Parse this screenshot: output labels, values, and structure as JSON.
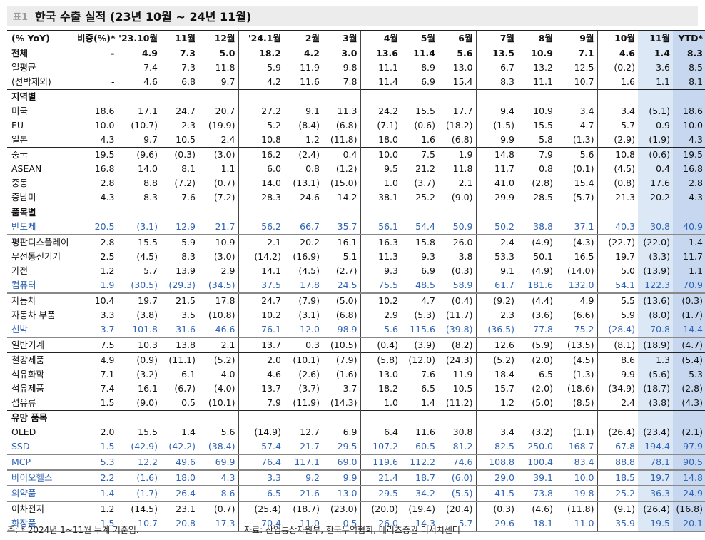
{
  "title_tag": "표1",
  "title": "한국 수출 실적 (23년 10월 ~ 24년 11월)",
  "header": [
    "(% YoY)",
    "비중(%)*",
    "'23.10월",
    "11월",
    "12월",
    "'24.1월",
    "2월",
    "3월",
    "4월",
    "5월",
    "6월",
    "7월",
    "8월",
    "9월",
    "10월",
    "11월",
    "YTD*"
  ],
  "groups": [
    {
      "rows": [
        {
          "label": "전체",
          "bold": true,
          "values": [
            "-",
            "4.9",
            "7.3",
            "5.0",
            "18.2",
            "4.2",
            "3.0",
            "13.6",
            "11.4",
            "5.6",
            "13.5",
            "10.9",
            "7.1",
            "4.6",
            "1.4",
            "8.3"
          ]
        },
        {
          "label": "일평균",
          "values": [
            "-",
            "7.4",
            "7.3",
            "11.8",
            "5.9",
            "11.9",
            "9.8",
            "11.1",
            "8.9",
            "13.0",
            "6.7",
            "13.2",
            "12.5",
            "(0.2)",
            "3.6",
            "8.5"
          ]
        },
        {
          "label": "(선박제외)",
          "values": [
            "-",
            "4.6",
            "6.8",
            "9.7",
            "4.2",
            "11.6",
            "7.8",
            "11.4",
            "6.9",
            "15.4",
            "8.3",
            "11.1",
            "10.7",
            "1.6",
            "1.1",
            "8.1"
          ]
        }
      ]
    },
    {
      "section": "지역별",
      "rows": [
        {
          "label": "미국",
          "values": [
            "18.6",
            "17.1",
            "24.7",
            "20.7",
            "27.2",
            "9.1",
            "11.3",
            "24.2",
            "15.5",
            "17.7",
            "9.4",
            "10.9",
            "3.4",
            "3.4",
            "(5.1)",
            "18.6"
          ]
        },
        {
          "label": "EU",
          "values": [
            "10.0",
            "(10.7)",
            "2.3",
            "(19.9)",
            "5.2",
            "(8.4)",
            "(6.8)",
            "(7.1)",
            "(0.6)",
            "(18.2)",
            "(1.5)",
            "15.5",
            "4.7",
            "5.7",
            "0.9",
            "10.0"
          ]
        },
        {
          "label": "일본",
          "values": [
            "4.3",
            "9.7",
            "10.5",
            "2.4",
            "10.8",
            "1.2",
            "(11.8)",
            "18.0",
            "1.6",
            "(6.8)",
            "9.9",
            "5.8",
            "(1.3)",
            "(2.9)",
            "(1.9)",
            "4.3"
          ]
        }
      ]
    },
    {
      "rows": [
        {
          "label": "중국",
          "values": [
            "19.5",
            "(9.6)",
            "(0.3)",
            "(3.0)",
            "16.2",
            "(2.4)",
            "0.4",
            "10.0",
            "7.5",
            "1.9",
            "14.8",
            "7.9",
            "5.6",
            "10.8",
            "(0.6)",
            "19.5"
          ]
        },
        {
          "label": "ASEAN",
          "values": [
            "16.8",
            "14.0",
            "8.1",
            "1.1",
            "6.0",
            "0.8",
            "(1.2)",
            "9.5",
            "21.2",
            "11.8",
            "11.7",
            "0.8",
            "(0.1)",
            "(4.5)",
            "0.4",
            "16.8"
          ]
        },
        {
          "label": "중동",
          "values": [
            "2.8",
            "8.8",
            "(7.2)",
            "(0.7)",
            "14.0",
            "(13.1)",
            "(15.0)",
            "1.0",
            "(3.7)",
            "2.1",
            "41.0",
            "(2.8)",
            "15.4",
            "(0.8)",
            "17.6",
            "2.8"
          ]
        },
        {
          "label": "중남미",
          "values": [
            "4.3",
            "8.3",
            "7.6",
            "(7.2)",
            "28.3",
            "24.6",
            "14.2",
            "38.1",
            "25.2",
            "(9.0)",
            "29.9",
            "28.5",
            "(5.7)",
            "21.3",
            "20.2",
            "4.3"
          ]
        }
      ]
    },
    {
      "section": "품목별",
      "rows": [
        {
          "label": "반도체",
          "blue": true,
          "values": [
            "20.5",
            "(3.1)",
            "12.9",
            "21.7",
            "56.2",
            "66.7",
            "35.7",
            "56.1",
            "54.4",
            "50.9",
            "50.2",
            "38.8",
            "37.1",
            "40.3",
            "30.8",
            "40.9"
          ]
        },
        {
          "label": "평판디스플레이",
          "values": [
            "2.8",
            "15.5",
            "5.9",
            "10.9",
            "2.1",
            "20.2",
            "16.1",
            "16.3",
            "15.8",
            "26.0",
            "2.4",
            "(4.9)",
            "(4.3)",
            "(22.7)",
            "(22.0)",
            "1.4"
          ]
        },
        {
          "label": "무선통신기기",
          "values": [
            "2.5",
            "(4.5)",
            "8.3",
            "(3.0)",
            "(14.2)",
            "(16.9)",
            "5.1",
            "11.3",
            "9.3",
            "3.8",
            "53.3",
            "50.1",
            "16.5",
            "19.7",
            "(3.3)",
            "11.7"
          ]
        },
        {
          "label": "가전",
          "values": [
            "1.2",
            "5.7",
            "13.9",
            "2.9",
            "14.1",
            "(4.5)",
            "(2.7)",
            "9.3",
            "6.9",
            "(0.3)",
            "9.1",
            "(4.9)",
            "(14.0)",
            "5.0",
            "(13.9)",
            "1.1"
          ]
        },
        {
          "label": "컴퓨터",
          "blue": true,
          "values": [
            "1.9",
            "(30.5)",
            "(29.3)",
            "(34.5)",
            "37.5",
            "17.8",
            "24.5",
            "75.5",
            "48.5",
            "58.9",
            "61.7",
            "181.6",
            "132.0",
            "54.1",
            "122.3",
            "70.9"
          ]
        }
      ]
    },
    {
      "rows": [
        {
          "label": "자동차",
          "values": [
            "10.4",
            "19.7",
            "21.5",
            "17.8",
            "24.7",
            "(7.9)",
            "(5.0)",
            "10.2",
            "4.7",
            "(0.4)",
            "(9.2)",
            "(4.4)",
            "4.9",
            "5.5",
            "(13.6)",
            "(0.3)"
          ]
        },
        {
          "label": "자동차 부품",
          "values": [
            "3.3",
            "(3.8)",
            "3.5",
            "(10.8)",
            "10.2",
            "(3.1)",
            "(6.8)",
            "2.9",
            "(5.3)",
            "(11.7)",
            "2.3",
            "(3.6)",
            "(6.6)",
            "5.9",
            "(8.0)",
            "(1.7)"
          ]
        },
        {
          "label": "선박",
          "blue": true,
          "values": [
            "3.7",
            "101.8",
            "31.6",
            "46.6",
            "76.1",
            "12.0",
            "98.9",
            "5.6",
            "115.6",
            "(39.8)",
            "(36.5)",
            "77.8",
            "75.2",
            "(28.4)",
            "70.8",
            "14.4"
          ]
        },
        {
          "label": "일반기계",
          "values": [
            "7.5",
            "10.3",
            "13.8",
            "2.1",
            "13.7",
            "0.3",
            "(10.5)",
            "(0.4)",
            "(3.9)",
            "(8.2)",
            "12.6",
            "(5.9)",
            "(13.5)",
            "(8.1)",
            "(18.9)",
            "(4.7)"
          ]
        }
      ]
    },
    {
      "rows": [
        {
          "label": "철강제품",
          "values": [
            "4.9",
            "(0.9)",
            "(11.1)",
            "(5.2)",
            "2.0",
            "(10.1)",
            "(7.9)",
            "(5.8)",
            "(12.0)",
            "(24.3)",
            "(5.2)",
            "(2.0)",
            "(4.5)",
            "8.6",
            "1.3",
            "(5.4)"
          ]
        },
        {
          "label": "석유화학",
          "values": [
            "7.1",
            "(3.2)",
            "6.1",
            "4.0",
            "4.6",
            "(2.6)",
            "(1.6)",
            "13.0",
            "7.6",
            "11.9",
            "18.4",
            "6.5",
            "(1.3)",
            "9.9",
            "(5.6)",
            "5.3"
          ]
        },
        {
          "label": "석유제품",
          "values": [
            "7.4",
            "16.1",
            "(6.7)",
            "(4.0)",
            "13.7",
            "(3.7)",
            "3.7",
            "18.2",
            "6.5",
            "10.5",
            "15.7",
            "(2.0)",
            "(18.6)",
            "(34.9)",
            "(18.7)",
            "(2.8)"
          ]
        },
        {
          "label": "섬유류",
          "values": [
            "1.5",
            "(9.0)",
            "0.5",
            "(10.1)",
            "7.9",
            "(11.9)",
            "(14.3)",
            "1.0",
            "1.4",
            "(11.2)",
            "1.2",
            "(5.0)",
            "(8.5)",
            "2.4",
            "(3.8)",
            "(4.3)"
          ]
        }
      ]
    },
    {
      "section": "유망 품목",
      "rows": [
        {
          "label": "OLED",
          "values": [
            "2.0",
            "15.5",
            "1.4",
            "5.6",
            "(14.9)",
            "12.7",
            "6.9",
            "6.4",
            "11.6",
            "30.8",
            "3.4",
            "(3.2)",
            "(1.1)",
            "(26.4)",
            "(23.4)",
            "(2.1)"
          ]
        },
        {
          "label": "SSD",
          "blue": true,
          "values": [
            "1.5",
            "(42.9)",
            "(42.2)",
            "(38.4)",
            "57.4",
            "21.7",
            "29.5",
            "107.2",
            "60.5",
            "81.2",
            "82.5",
            "250.0",
            "168.7",
            "67.8",
            "194.4",
            "97.9"
          ]
        },
        {
          "label": "MCP",
          "blue": true,
          "values": [
            "5.3",
            "12.2",
            "49.6",
            "69.9",
            "76.4",
            "117.1",
            "69.0",
            "119.6",
            "112.2",
            "74.6",
            "108.8",
            "100.4",
            "83.4",
            "88.8",
            "78.1",
            "90.5"
          ]
        }
      ]
    },
    {
      "rows": [
        {
          "label": "바이오헬스",
          "blue": true,
          "values": [
            "2.2",
            "(1.6)",
            "18.0",
            "4.3",
            "3.3",
            "9.2",
            "9.9",
            "21.4",
            "18.7",
            "(6.0)",
            "29.0",
            "39.1",
            "10.0",
            "18.5",
            "19.7",
            "14.8"
          ]
        },
        {
          "label": "의약품",
          "blue": true,
          "values": [
            "1.4",
            "(1.7)",
            "26.4",
            "8.6",
            "6.5",
            "21.6",
            "13.0",
            "29.5",
            "34.2",
            "(5.5)",
            "41.5",
            "73.8",
            "19.8",
            "25.2",
            "36.3",
            "24.9"
          ]
        },
        {
          "label": "이차전지",
          "values": [
            "1.2",
            "(14.5)",
            "23.1",
            "(0.7)",
            "(25.4)",
            "(18.7)",
            "(23.0)",
            "(20.0)",
            "(19.4)",
            "(20.4)",
            "(0.3)",
            "(4.6)",
            "(11.8)",
            "(9.1)",
            "(26.4)",
            "(16.8)"
          ]
        },
        {
          "label": "화장품",
          "blue": true,
          "values": [
            "1.5",
            "10.7",
            "20.8",
            "17.3",
            "70.4",
            "11.0",
            "0.5",
            "26.0",
            "14.3",
            "5.7",
            "29.6",
            "18.1",
            "11.0",
            "35.9",
            "19.5",
            "20.1"
          ]
        }
      ]
    }
  ],
  "underlined_rows": [
    "반도체",
    "컴퓨터",
    "선박",
    "SSD",
    "MCP",
    "바이오헬스",
    "의약품",
    "화장품"
  ],
  "footnote_left": "주: * 2024년 1~11월 누계 기준임.",
  "footnote_right": "자료: 산업통상자원부, 한국무역협회, 메리츠증권 리서치센터",
  "colors": {
    "blue_text": "#2f63b3",
    "highlight": "#dde8f6",
    "title_bg": "#ececec"
  }
}
